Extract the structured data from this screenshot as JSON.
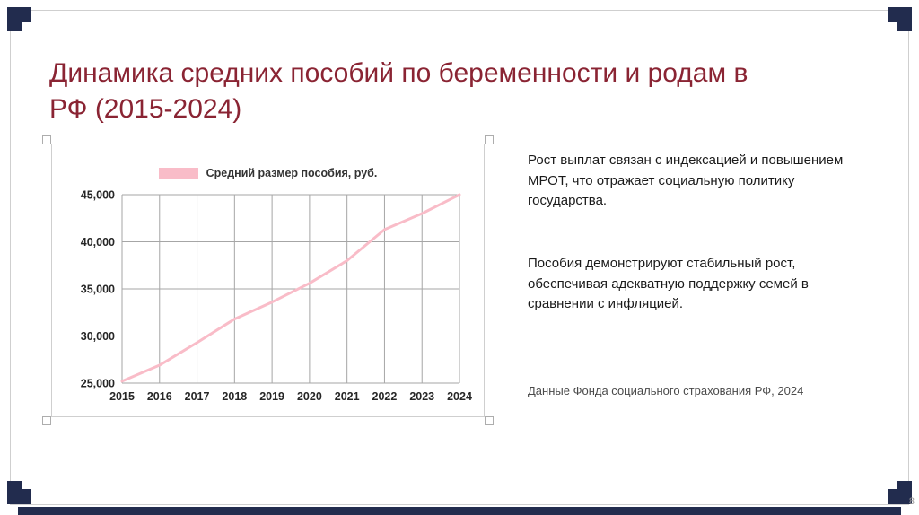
{
  "slide": {
    "title": "Динамика средних пособий по беременности и родам в РФ (2015-2024)",
    "page_number": "8",
    "note_1": "Рост выплат связан с индексацией и повышением МРОТ, что отражает социальную политику государства.",
    "note_2": "Пособия демонстрируют стабильный рост, обеспечивая адекватную поддержку семей в сравнении с инфляцией.",
    "source": "Данные Фонда социального страхования РФ, 2024"
  },
  "chart_data": {
    "type": "line",
    "title": "",
    "legend_label": "Средний размер пособия, руб.",
    "legend_position": "top",
    "x": [
      "2015",
      "2016",
      "2017",
      "2018",
      "2019",
      "2020",
      "2021",
      "2022",
      "2023",
      "2024"
    ],
    "series": [
      {
        "name": "Средний размер пособия, руб.",
        "color": "#f9bcc8",
        "values": [
          25200,
          26900,
          29300,
          31800,
          33600,
          35600,
          38000,
          41300,
          43000,
          45000
        ]
      }
    ],
    "ylim": [
      25000,
      45000
    ],
    "yticks": [
      25000,
      30000,
      35000,
      40000,
      45000
    ],
    "ytick_labels": [
      "25,000",
      "30,000",
      "35,000",
      "40,000",
      "45,000"
    ],
    "grid": true
  },
  "colors": {
    "title": "#8a2433",
    "accent_navy": "#222c4e",
    "line_pink": "#f9bcc8",
    "grid": "#a6a6a6",
    "tick_text": "#262626"
  }
}
